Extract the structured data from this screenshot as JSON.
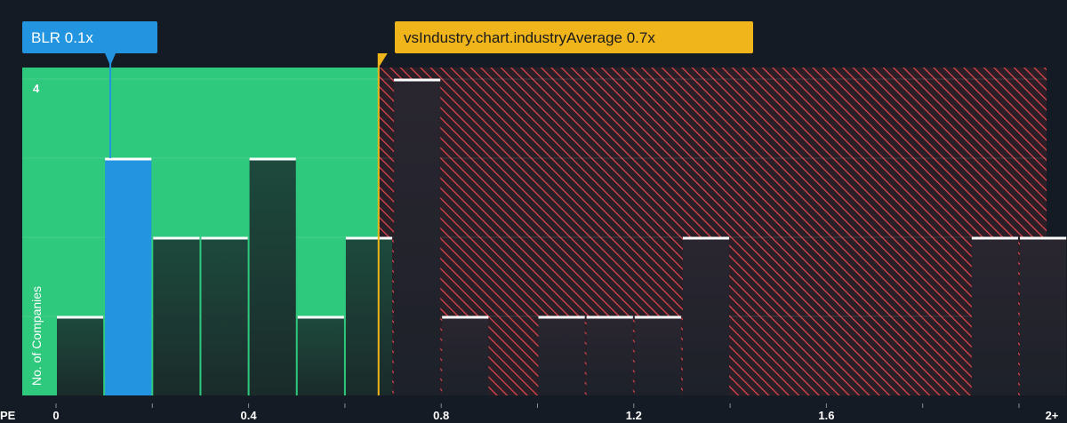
{
  "chart_data": {
    "type": "bar",
    "xlabel": "PE",
    "ylabel": "No. of Companies",
    "bin_width": 0.1,
    "x_range": [
      0,
      2.05
    ],
    "ylim": [
      0,
      4
    ],
    "x_ticks": [
      {
        "value": 0,
        "label": "0"
      },
      {
        "value": 0.4,
        "label": "0.4"
      },
      {
        "value": 0.8,
        "label": "0.8"
      },
      {
        "value": 1.2,
        "label": "1.2"
      },
      {
        "value": 1.6,
        "label": "1.6"
      },
      {
        "value": 2.0,
        "label": "2+"
      }
    ],
    "y_ticks": [
      {
        "value": 4,
        "label": "4"
      }
    ],
    "bins": [
      {
        "start": 0.0,
        "count": 1
      },
      {
        "start": 0.1,
        "count": 3,
        "highlight": true
      },
      {
        "start": 0.2,
        "count": 2
      },
      {
        "start": 0.3,
        "count": 2
      },
      {
        "start": 0.4,
        "count": 3
      },
      {
        "start": 0.5,
        "count": 1
      },
      {
        "start": 0.6,
        "count": 2
      },
      {
        "start": 0.7,
        "count": 4
      },
      {
        "start": 0.8,
        "count": 1
      },
      {
        "start": 0.9,
        "count": 0
      },
      {
        "start": 1.0,
        "count": 1
      },
      {
        "start": 1.1,
        "count": 1
      },
      {
        "start": 1.2,
        "count": 1
      },
      {
        "start": 1.3,
        "count": 2
      },
      {
        "start": 1.4,
        "count": 0
      },
      {
        "start": 1.5,
        "count": 0
      },
      {
        "start": 1.6,
        "count": 0
      },
      {
        "start": 1.7,
        "count": 0
      },
      {
        "start": 1.8,
        "count": 0
      },
      {
        "start": 1.9,
        "count": 2
      },
      {
        "start": 2.0,
        "count": 2
      }
    ],
    "company": {
      "label": "BLR 0.1x",
      "value": 0.11,
      "color": "#2394e0"
    },
    "industry": {
      "label": "vsIndustry.chart.industryAverage 0.7x",
      "value": 0.705,
      "color": "#f0b51a"
    },
    "colors": {
      "background": "#151b24",
      "good_zone": "#2ec97d",
      "bad_zone": "#d9464c",
      "bar": "#1f4b3c",
      "bar_top": "#ffffff",
      "highlight": "#2394e0"
    }
  }
}
